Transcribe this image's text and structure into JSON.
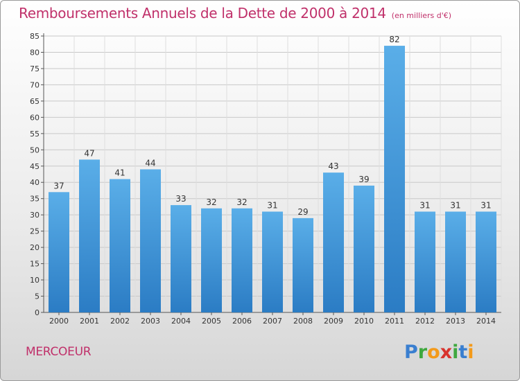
{
  "title": "Remboursements Annuels de la Dette de 2000 à 2014",
  "unit_note": "(en milliers d'€)",
  "commune": "MERCOEUR",
  "logo": "Proxiti",
  "colors": {
    "title": "#c0306a",
    "bar_light": "#5aaee8",
    "bar_dark": "#2b7cc4"
  },
  "chart_data": {
    "type": "bar",
    "title": "Remboursements Annuels de la Dette de 2000 à 2014",
    "ylabel": "(en milliers d'€)",
    "xlabel": "",
    "categories": [
      "2000",
      "2001",
      "2002",
      "2003",
      "2004",
      "2005",
      "2006",
      "2007",
      "2008",
      "2009",
      "2010",
      "2011",
      "2012",
      "2013",
      "2014"
    ],
    "values": [
      37,
      47,
      41,
      44,
      33,
      32,
      32,
      31,
      29,
      43,
      39,
      82,
      31,
      31,
      31
    ],
    "ylim": [
      0,
      85
    ],
    "yticks": [
      0,
      5,
      10,
      15,
      20,
      25,
      30,
      35,
      40,
      45,
      50,
      55,
      60,
      65,
      70,
      75,
      80,
      85
    ],
    "grid": true,
    "data_labels": true
  }
}
